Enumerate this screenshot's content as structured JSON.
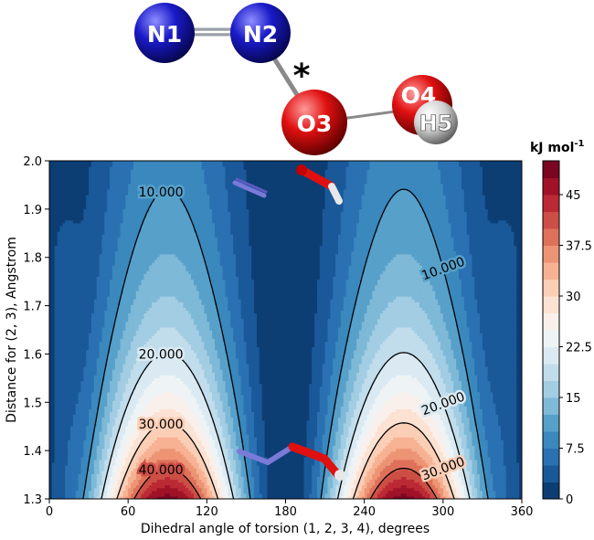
{
  "molecule": {
    "atoms": [
      {
        "id": "n1",
        "label": "N1",
        "element": "N",
        "color": "#1a1ac8"
      },
      {
        "id": "n2",
        "label": "N2",
        "element": "N",
        "color": "#1a1ac8"
      },
      {
        "id": "o3",
        "label": "O3",
        "element": "O",
        "color": "#e01010"
      },
      {
        "id": "o4",
        "label": "O4",
        "element": "O",
        "color": "#e01010"
      },
      {
        "id": "h5",
        "label": "H5",
        "element": "H",
        "color": "#dcdcdc"
      }
    ],
    "bonds": [
      [
        "N1",
        "N2",
        "double"
      ],
      [
        "N2",
        "O3",
        "single"
      ],
      [
        "O3",
        "O4",
        "single"
      ],
      [
        "O4",
        "H5",
        "single"
      ]
    ],
    "marker": "*"
  },
  "chart_data": {
    "type": "heatmap",
    "subtype": "filled-contour",
    "xlabel": "Dihedral angle of torsion (1, 2, 3, 4), degrees",
    "ylabel": "Distance for (2, 3), Angstrom",
    "xlim": [
      0,
      360
    ],
    "ylim": [
      1.3,
      2.0
    ],
    "xticks": [
      0,
      60,
      120,
      180,
      240,
      300,
      360
    ],
    "yticks": [
      1.3,
      1.4,
      1.5,
      1.6,
      1.7,
      1.8,
      1.9,
      2.0
    ],
    "colorbar": {
      "unit_text": "kJ mol",
      "unit_sup": "-1",
      "range": [
        0,
        50
      ],
      "tick_labels": [
        "0",
        "7.5",
        "15",
        "22.5",
        "30",
        "37.5",
        "45"
      ],
      "tick_values": [
        0,
        7.5,
        15,
        22.5,
        30,
        37.5,
        45
      ],
      "colormap": "RdBu_r",
      "levels": 20
    },
    "contour_lines": [
      {
        "level": 10,
        "label": "10.000"
      },
      {
        "level": 20,
        "label": "20.000"
      },
      {
        "level": 30,
        "label": "30.000"
      },
      {
        "level": 40,
        "label": "40.000"
      }
    ],
    "peaks": [
      {
        "x": 85,
        "y": 1.3,
        "value": 49
      },
      {
        "x": 275,
        "y": 1.3,
        "value": 49
      }
    ],
    "minimum_channel_x": 180
  }
}
